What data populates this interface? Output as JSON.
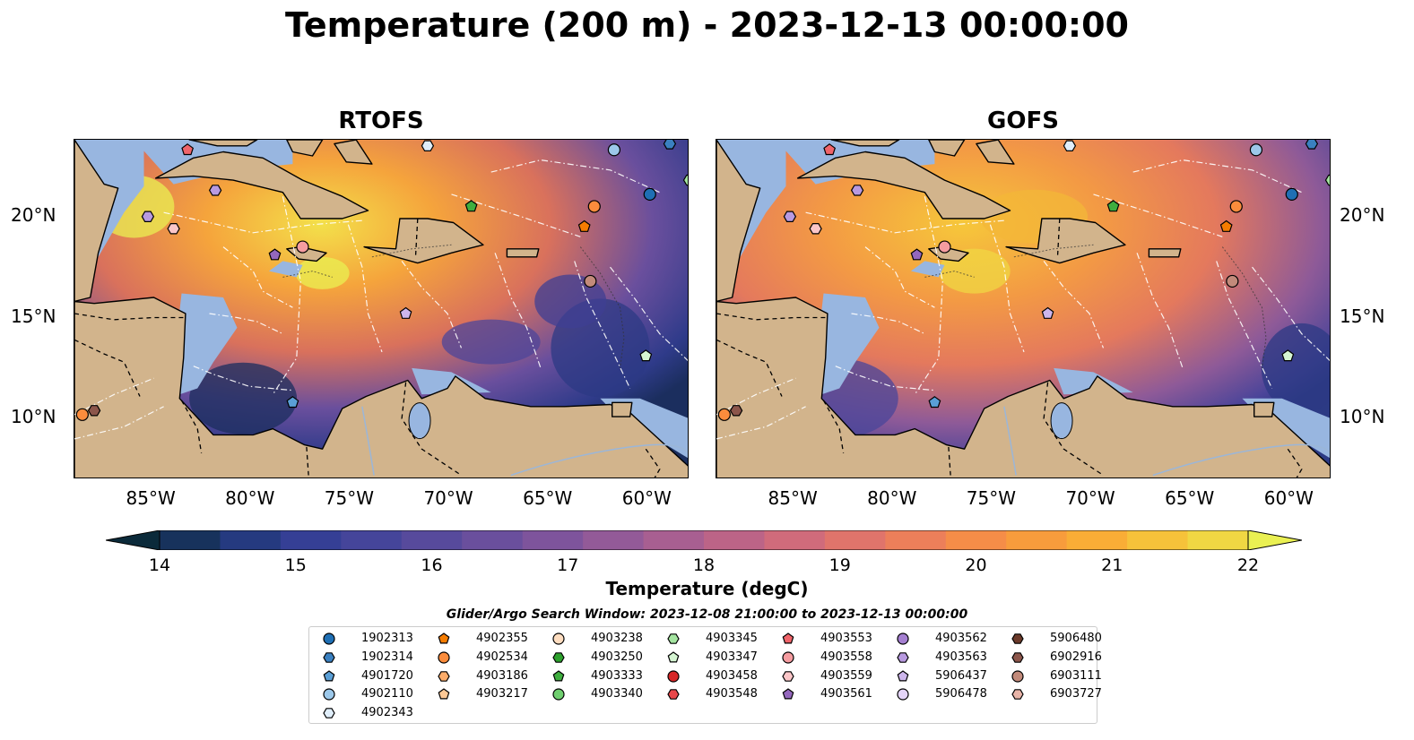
{
  "figure": {
    "title": "Temperature (200 m) - 2023-12-13 00:00:00",
    "panels": [
      {
        "title": "RTOFS"
      },
      {
        "title": "GOFS"
      }
    ],
    "x_ticks": [
      "85°W",
      "80°W",
      "75°W",
      "70°W",
      "65°W",
      "60°W"
    ],
    "y_ticks": [
      "20°N",
      "15°N",
      "10°N"
    ],
    "colorbar": {
      "label": "Temperature (degC)",
      "ticks": [
        "14",
        "15",
        "16",
        "17",
        "18",
        "19",
        "20",
        "21",
        "22"
      ],
      "colors": [
        "#0b2a3a",
        "#17325c",
        "#253a80",
        "#353f95",
        "#45459a",
        "#574a9c",
        "#6a4f9d",
        "#7e549c",
        "#935a98",
        "#a85f91",
        "#bc6487",
        "#d06b7b",
        "#e0746b",
        "#ec7f5a",
        "#f58d48",
        "#f89c3c",
        "#f9ad36",
        "#f6c23a",
        "#f0d743",
        "#eaf052"
      ]
    },
    "search_window": "Glider/Argo Search Window: 2023-12-08 21:00:00 to 2023-12-13 00:00:00",
    "colors": {
      "land": "#d2b48c",
      "shelf": "#98b6e0",
      "deep": "#0b2a3a"
    }
  },
  "legend": [
    {
      "id": "1902313",
      "marker": "circle",
      "color": "#1f6fb4"
    },
    {
      "id": "1902314",
      "marker": "hexagon",
      "color": "#3a80c0"
    },
    {
      "id": "4901720",
      "marker": "pentagon",
      "color": "#5a9fd6"
    },
    {
      "id": "4902110",
      "marker": "circle",
      "color": "#9cc8ea"
    },
    {
      "id": "4902343",
      "marker": "hexagon",
      "color": "#e0eefa"
    },
    {
      "id": "4902355",
      "marker": "pentagon",
      "color": "#f57c00"
    },
    {
      "id": "4902534",
      "marker": "circle",
      "color": "#fb8c3c"
    },
    {
      "id": "4903186",
      "marker": "hexagon",
      "color": "#fcac6a"
    },
    {
      "id": "4903217",
      "marker": "pentagon",
      "color": "#fdc895"
    },
    {
      "id": "4903238",
      "marker": "circle",
      "color": "#feddc0"
    },
    {
      "id": "4903250",
      "marker": "hexagon",
      "color": "#2ca02c"
    },
    {
      "id": "4903333",
      "marker": "pentagon",
      "color": "#3fae3f"
    },
    {
      "id": "4903340",
      "marker": "circle",
      "color": "#6fcf6f"
    },
    {
      "id": "4903345",
      "marker": "hexagon",
      "color": "#a4e4a0"
    },
    {
      "id": "4903347",
      "marker": "pentagon",
      "color": "#d5f5d2"
    },
    {
      "id": "4903458",
      "marker": "circle",
      "color": "#d62728"
    },
    {
      "id": "4903548",
      "marker": "hexagon",
      "color": "#e8474a"
    },
    {
      "id": "4903553",
      "marker": "pentagon",
      "color": "#f0646a"
    },
    {
      "id": "4903558",
      "marker": "circle",
      "color": "#f59ca0"
    },
    {
      "id": "4903559",
      "marker": "hexagon",
      "color": "#fbc6c8"
    },
    {
      "id": "4903561",
      "marker": "pentagon",
      "color": "#9467bd"
    },
    {
      "id": "4903562",
      "marker": "circle",
      "color": "#a47fd0"
    },
    {
      "id": "4903563",
      "marker": "hexagon",
      "color": "#b89ae0"
    },
    {
      "id": "5906437",
      "marker": "pentagon",
      "color": "#cdb6ec"
    },
    {
      "id": "5906478",
      "marker": "circle",
      "color": "#e4d4f8"
    },
    {
      "id": "5906480",
      "marker": "hexagon",
      "color": "#6b3a2a"
    },
    {
      "id": "6902916",
      "marker": "hexagon",
      "color": "#8c564b"
    },
    {
      "id": "6903111",
      "marker": "circle",
      "color": "#c28a7a"
    },
    {
      "id": "6903727",
      "marker": "hexagon",
      "color": "#e8b4a8"
    }
  ],
  "floats": [
    {
      "lon": -85.3,
      "lat": 20.0,
      "legend": 22
    },
    {
      "lon": -84.0,
      "lat": 19.4,
      "legend": 19
    },
    {
      "lon": -81.9,
      "lat": 21.3,
      "legend": 22
    },
    {
      "lon": -78.9,
      "lat": 18.1,
      "legend": 20
    },
    {
      "lon": -77.5,
      "lat": 18.5,
      "legend": 18
    },
    {
      "lon": -72.3,
      "lat": 15.2,
      "legend": 23
    },
    {
      "lon": -78.0,
      "lat": 10.8,
      "legend": 2
    },
    {
      "lon": -69.0,
      "lat": 20.5,
      "legend": 11
    },
    {
      "lon": -62.8,
      "lat": 20.5,
      "legend": 6
    },
    {
      "lon": -63.3,
      "lat": 19.5,
      "legend": 5
    },
    {
      "lon": -60.0,
      "lat": 21.1,
      "legend": 0
    },
    {
      "lon": -61.8,
      "lat": 23.3,
      "legend": 3
    },
    {
      "lon": -63.0,
      "lat": 16.8,
      "legend": 27
    },
    {
      "lon": -60.2,
      "lat": 13.1,
      "legend": 14
    },
    {
      "lon": -71.2,
      "lat": 23.5,
      "legend": 4
    },
    {
      "lon": -83.3,
      "lat": 23.3,
      "legend": 17
    },
    {
      "lon": -88.6,
      "lat": 10.2,
      "legend": 6
    },
    {
      "lon": -88.0,
      "lat": 10.4,
      "legend": 26
    },
    {
      "lon": -58.0,
      "lat": 21.8,
      "legend": 13
    },
    {
      "lon": -59.0,
      "lat": 23.6,
      "legend": 1
    }
  ]
}
